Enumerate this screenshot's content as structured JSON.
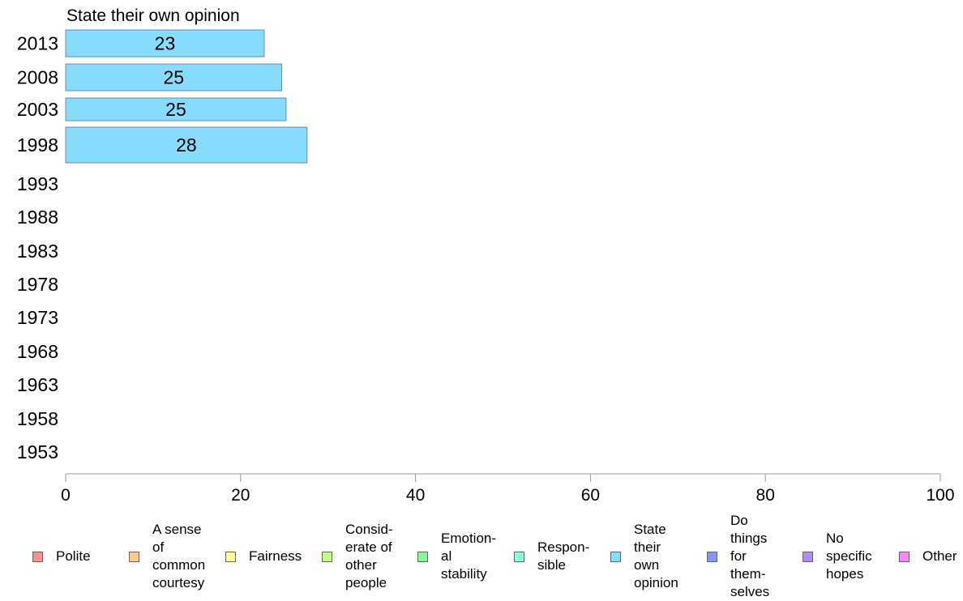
{
  "chart_data": {
    "type": "bar",
    "orientation": "horizontal",
    "title": "State their own opinion",
    "categories": [
      "2013",
      "2008",
      "2003",
      "1998",
      "1993",
      "1988",
      "1983",
      "1978",
      "1973",
      "1968",
      "1963",
      "1958",
      "1953"
    ],
    "series": [
      {
        "name": "State their own opinion",
        "color": "#87DCFE",
        "values": [
          23,
          25,
          25,
          28,
          null,
          null,
          null,
          null,
          null,
          null,
          null,
          null,
          null
        ],
        "labels": [
          "23",
          "25",
          "25",
          "28",
          "",
          "",
          "",
          "",
          "",
          "",
          "",
          "",
          ""
        ]
      }
    ],
    "bar_widths": [
      22.7,
      24.7,
      25.2,
      27.6
    ],
    "xlim": [
      0,
      100
    ],
    "xticks": [
      "0",
      "20",
      "40",
      "60",
      "80",
      "100"
    ],
    "xlabel": "",
    "ylabel": "",
    "grid": false,
    "legend_position": "bottom"
  },
  "legend": [
    {
      "label": "Polite",
      "color": "#F8938F"
    },
    {
      "label": "A sense\nof\ncommon\ncourtesy",
      "color": "#FCCB8E"
    },
    {
      "label": "Fairness",
      "color": "#FFFD93"
    },
    {
      "label": "Consid-\nerate of\nother\npeople",
      "color": "#C0FC8C"
    },
    {
      "label": "Emotion-\nal\nstability",
      "color": "#8BF59A"
    },
    {
      "label": "Respon-\nsible",
      "color": "#8FFDE0"
    },
    {
      "label": "State\ntheir\nown\nopinion",
      "color": "#87DCFE"
    },
    {
      "label": "Do\nthings\nfor\nthem-\nselves",
      "color": "#8597F6"
    },
    {
      "label": "No\nspecific\nhopes",
      "color": "#B08DF2"
    },
    {
      "label": "Other",
      "color": "#F889F4"
    }
  ]
}
